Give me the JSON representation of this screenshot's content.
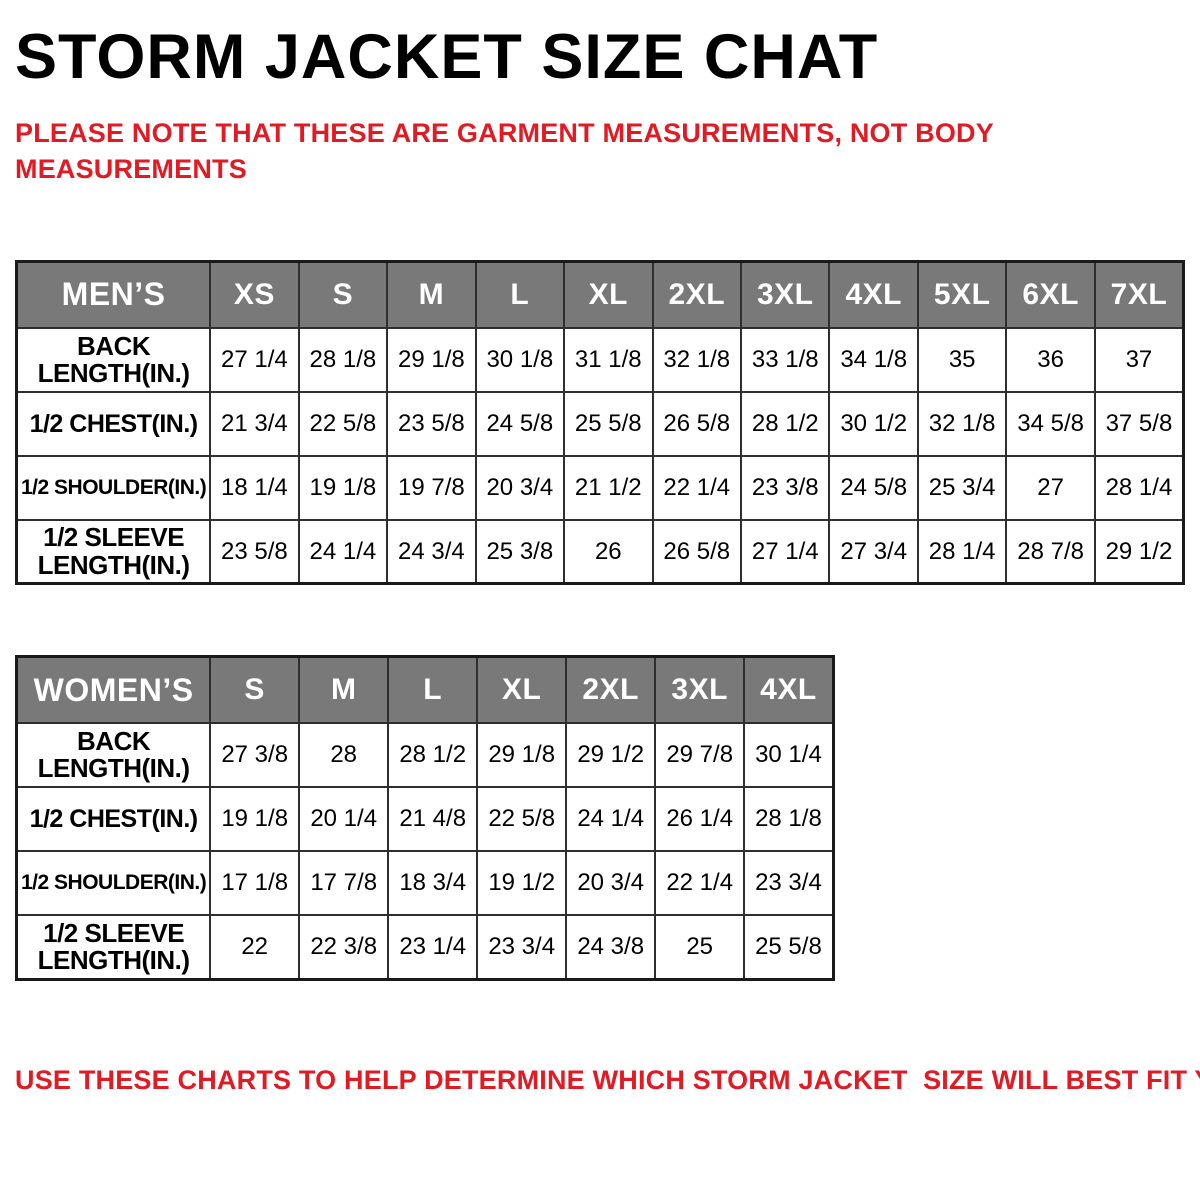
{
  "title": "STORM JACKET SIZE CHAT",
  "note": {
    "line1": "PLEASE NOTE THAT THESE ARE GARMENT MEASUREMENTS, NOT BODY",
    "line2": "MEASUREMENTS"
  },
  "footer": "USE THESE CHARTS TO HELP DETERMINE WHICH STORM JACKET  SIZE WILL BEST FIT YOU.",
  "colors": {
    "accent_red": "#e01b24",
    "header_gray": "#797979",
    "border_black": "#1a1a1a"
  },
  "mens_table": {
    "title": "MEN’S",
    "sizes": [
      "XS",
      "S",
      "M",
      "L",
      "XL",
      "2XL",
      "3XL",
      "4XL",
      "5XL",
      "6XL",
      "7XL"
    ],
    "rows": [
      {
        "label": "BACK LENGTH(IN.)",
        "values": [
          "27 1/4",
          "28 1/8",
          "29 1/8",
          "30 1/8",
          "31 1/8",
          "32 1/8",
          "33 1/8",
          "34 1/8",
          "35",
          "36",
          "37"
        ]
      },
      {
        "label": "1/2 CHEST(IN.)",
        "values": [
          "21 3/4",
          "22 5/8",
          "23 5/8",
          "24 5/8",
          "25 5/8",
          "26 5/8",
          "28 1/2",
          "30 1/2",
          "32 1/8",
          "34 5/8",
          "37 5/8"
        ]
      },
      {
        "label": "1/2 SHOULDER(IN.)",
        "values": [
          "18 1/4",
          "19 1/8",
          "19 7/8",
          "20 3/4",
          "21 1/2",
          "22 1/4",
          "23 3/8",
          "24 5/8",
          "25 3/4",
          "27",
          "28 1/4"
        ]
      },
      {
        "label": "1/2 SLEEVE LENGTH(IN.)",
        "values": [
          "23 5/8",
          "24 1/4",
          "24 3/4",
          "25 3/8",
          "26",
          "26 5/8",
          "27 1/4",
          "27 3/4",
          "28 1/4",
          "28 7/8",
          "29 1/2"
        ]
      }
    ]
  },
  "womens_table": {
    "title": "WOMEN’S",
    "sizes": [
      "S",
      "M",
      "L",
      "XL",
      "2XL",
      "3XL",
      "4XL"
    ],
    "rows": [
      {
        "label": "BACK LENGTH(IN.)",
        "values": [
          "27 3/8",
          "28",
          "28 1/2",
          "29 1/8",
          "29 1/2",
          "29 7/8",
          "30 1/4"
        ]
      },
      {
        "label": "1/2 CHEST(IN.)",
        "values": [
          "19 1/8",
          "20 1/4",
          "21 4/8",
          "22 5/8",
          "24 1/4",
          "26 1/4",
          "28 1/8"
        ]
      },
      {
        "label": "1/2 SHOULDER(IN.)",
        "values": [
          "17 1/8",
          "17 7/8",
          "18 3/4",
          "19 1/2",
          "20 3/4",
          "22 1/4",
          "23 3/4"
        ]
      },
      {
        "label": "1/2 SLEEVE LENGTH(IN.)",
        "values": [
          "22",
          "22 3/8",
          "23 1/4",
          "23 3/4",
          "24 3/8",
          "25",
          "25 5/8"
        ]
      }
    ]
  }
}
